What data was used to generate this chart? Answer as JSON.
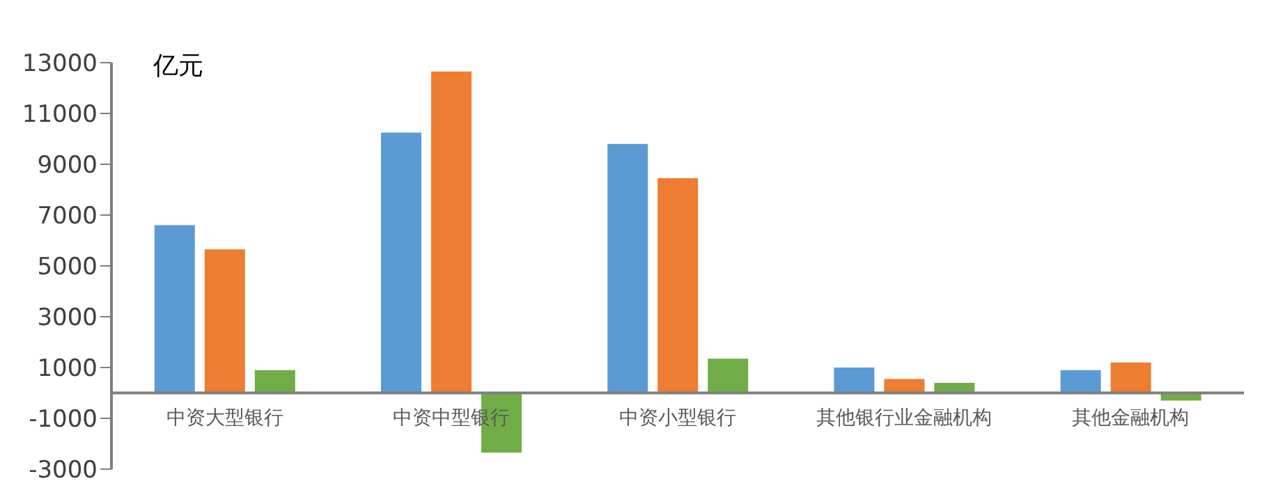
{
  "chart_data": {
    "type": "bar",
    "ylabel": "亿元",
    "categories": [
      "中资大型银行",
      "中资中型银行",
      "中资小型银行",
      "其他银行业金融机构",
      "其他金融机构"
    ],
    "series": [
      {
        "color": "#5b9bd5",
        "values": [
          6600,
          10250,
          9800,
          1000,
          900
        ]
      },
      {
        "color": "#ed7d31",
        "values": [
          5650,
          12650,
          8450,
          550,
          1200
        ]
      },
      {
        "color": "#70ad47",
        "values": [
          900,
          -2350,
          1350,
          400,
          -300
        ]
      }
    ],
    "ylim": [
      -3000,
      13000
    ],
    "yticks": [
      -3000,
      -1000,
      1000,
      3000,
      5000,
      7000,
      9000,
      11000,
      13000
    ],
    "grid": false,
    "legend": false
  }
}
